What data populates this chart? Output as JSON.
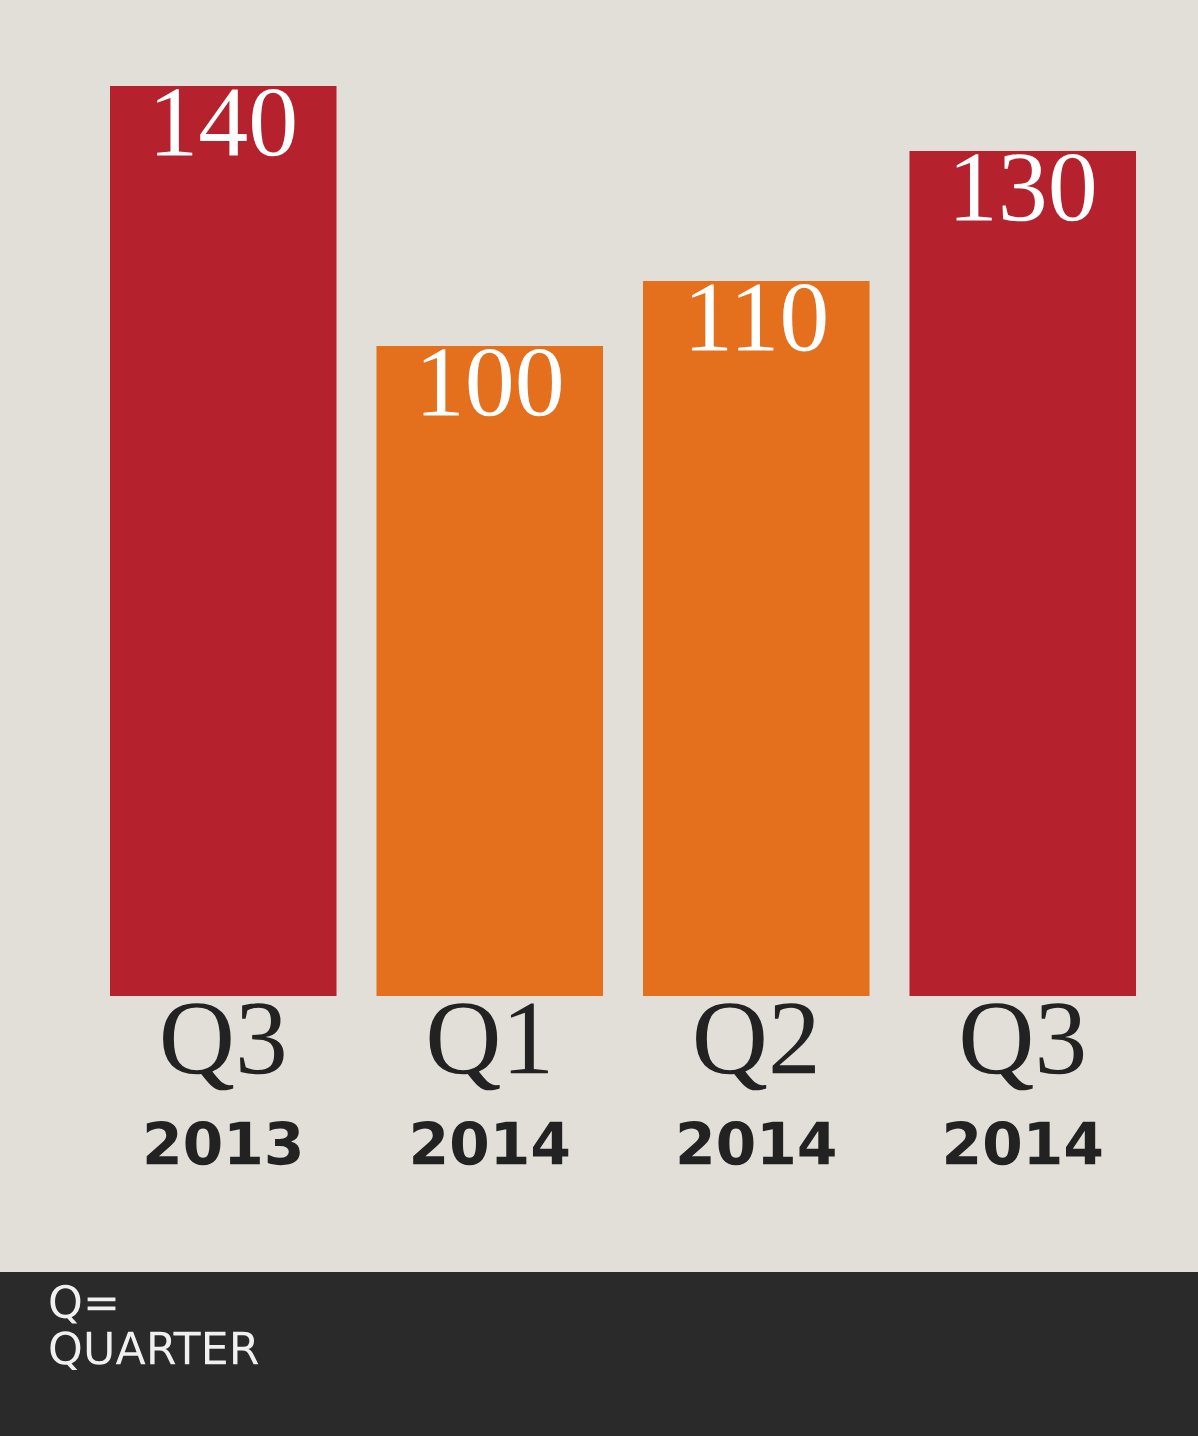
{
  "chart_data": {
    "type": "bar",
    "categories": [
      "Q3\n2013",
      "Q1\n2014",
      "Q2\n2014",
      "Q3\n2014"
    ],
    "values": [
      140,
      100,
      110,
      130
    ],
    "colors": [
      "#b5222d",
      "#e46f1d",
      "#e46f1d",
      "#b5222d"
    ],
    "data_labels": true,
    "annotations": [
      "Q=\nQUARTER"
    ]
  }
}
